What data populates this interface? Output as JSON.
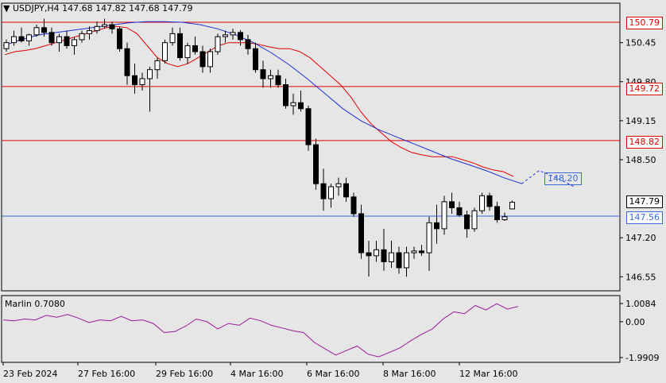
{
  "header": {
    "symbol": "USDJPY,H4",
    "ohlc": "147.68 147.82 147.68 147.79"
  },
  "indicator": {
    "label": "Marlin 0.7080",
    "y_ticks": [
      "1.0084",
      "0.00",
      "-1.9909"
    ],
    "y_values": [
      1.0084,
      0.0,
      -1.9909
    ],
    "series": [
      0.1,
      0.05,
      0.15,
      0.1,
      0.35,
      0.25,
      0.4,
      0.2,
      -0.05,
      0.1,
      0.05,
      0.3,
      0.05,
      0.1,
      -0.1,
      -0.6,
      -0.55,
      -0.25,
      0.15,
      0.0,
      -0.4,
      -0.1,
      -0.2,
      0.2,
      0.05,
      -0.2,
      -0.35,
      -0.5,
      -0.6,
      -1.15,
      -1.5,
      -1.85,
      -1.6,
      -1.35,
      -1.8,
      -1.95,
      -1.7,
      -1.45,
      -1.05,
      -0.7,
      -0.4,
      0.15,
      0.55,
      0.45,
      0.9,
      0.65,
      1.0,
      0.7,
      0.85
    ]
  },
  "price_levels": {
    "red_lines": [
      "150.79",
      "149.72",
      "148.82"
    ],
    "blue_line": "147.56",
    "current": "147.79",
    "ma_forecast": "148.20"
  },
  "chart_data": {
    "type": "candlestick",
    "symbol": "USDJPY",
    "timeframe": "H4",
    "ylim": [
      146.35,
      151.0
    ],
    "y_ticks": [
      "150.45",
      "149.80",
      "149.15",
      "148.50",
      "147.20",
      "146.55"
    ],
    "x_ticks": [
      "23 Feb 2024",
      "27 Feb 16:00",
      "29 Feb 16:00",
      "4 Mar 16:00",
      "6 Mar 16:00",
      "8 Mar 16:00",
      "12 Mar 16:00"
    ],
    "horizontal_lines": [
      150.79,
      149.72,
      148.82,
      147.56
    ],
    "candles": [
      [
        150.35,
        150.5,
        150.3,
        150.45
      ],
      [
        150.45,
        150.65,
        150.4,
        150.55
      ],
      [
        150.55,
        150.7,
        150.45,
        150.48
      ],
      [
        150.48,
        150.6,
        150.4,
        150.58
      ],
      [
        150.58,
        150.75,
        150.55,
        150.7
      ],
      [
        150.7,
        150.85,
        150.55,
        150.62
      ],
      [
        150.62,
        150.7,
        150.4,
        150.45
      ],
      [
        150.45,
        150.6,
        150.3,
        150.55
      ],
      [
        150.55,
        150.65,
        150.35,
        150.4
      ],
      [
        150.4,
        150.55,
        150.25,
        150.5
      ],
      [
        150.5,
        150.65,
        150.45,
        150.6
      ],
      [
        150.6,
        150.72,
        150.5,
        150.65
      ],
      [
        150.65,
        150.8,
        150.6,
        150.72
      ],
      [
        150.72,
        150.85,
        150.68,
        150.75
      ],
      [
        150.75,
        150.8,
        150.6,
        150.68
      ],
      [
        150.68,
        150.72,
        150.3,
        150.35
      ],
      [
        150.35,
        150.45,
        149.75,
        149.9
      ],
      [
        149.9,
        150.1,
        149.6,
        149.75
      ],
      [
        149.75,
        149.95,
        149.65,
        149.85
      ],
      [
        149.85,
        150.05,
        149.3,
        150.0
      ],
      [
        150.0,
        150.2,
        149.85,
        150.15
      ],
      [
        150.15,
        150.5,
        150.1,
        150.45
      ],
      [
        150.45,
        150.7,
        150.4,
        150.6
      ],
      [
        150.6,
        150.7,
        150.15,
        150.2
      ],
      [
        150.2,
        150.45,
        150.1,
        150.4
      ],
      [
        150.4,
        150.55,
        150.25,
        150.3
      ],
      [
        150.3,
        150.4,
        149.95,
        150.05
      ],
      [
        150.05,
        150.35,
        149.95,
        150.3
      ],
      [
        150.3,
        150.6,
        150.25,
        150.55
      ],
      [
        150.55,
        150.65,
        150.45,
        150.58
      ],
      [
        150.58,
        150.68,
        150.5,
        150.62
      ],
      [
        150.62,
        150.66,
        150.4,
        150.5
      ],
      [
        150.5,
        150.58,
        150.25,
        150.35
      ],
      [
        150.35,
        150.45,
        149.95,
        150.0
      ],
      [
        150.0,
        150.15,
        149.7,
        149.85
      ],
      [
        149.85,
        150.0,
        149.7,
        149.9
      ],
      [
        149.9,
        150.0,
        149.7,
        149.75
      ],
      [
        149.75,
        149.85,
        149.35,
        149.4
      ],
      [
        149.4,
        149.6,
        149.25,
        149.45
      ],
      [
        149.45,
        149.65,
        149.3,
        149.35
      ],
      [
        149.35,
        149.4,
        148.65,
        148.75
      ],
      [
        148.75,
        148.85,
        148.0,
        148.1
      ],
      [
        148.1,
        148.35,
        147.65,
        147.85
      ],
      [
        147.85,
        148.1,
        147.7,
        148.05
      ],
      [
        148.05,
        148.2,
        147.9,
        148.1
      ],
      [
        148.1,
        148.2,
        147.8,
        147.88
      ],
      [
        147.88,
        147.95,
        147.55,
        147.6
      ],
      [
        147.6,
        147.75,
        146.85,
        146.95
      ],
      [
        146.95,
        147.15,
        146.55,
        146.9
      ],
      [
        146.9,
        147.15,
        146.8,
        147.0
      ],
      [
        147.0,
        147.35,
        146.65,
        146.8
      ],
      [
        146.8,
        147.15,
        146.7,
        146.95
      ],
      [
        146.95,
        147.05,
        146.6,
        146.7
      ],
      [
        146.7,
        147.05,
        146.55,
        146.95
      ],
      [
        146.95,
        147.05,
        146.85,
        146.98
      ],
      [
        146.98,
        147.08,
        146.9,
        146.95
      ],
      [
        146.95,
        147.55,
        146.65,
        147.45
      ],
      [
        147.45,
        147.75,
        147.1,
        147.35
      ],
      [
        147.35,
        147.9,
        147.25,
        147.8
      ],
      [
        147.8,
        147.95,
        147.6,
        147.7
      ],
      [
        147.7,
        147.8,
        147.55,
        147.58
      ],
      [
        147.58,
        147.65,
        147.2,
        147.35
      ],
      [
        147.35,
        147.7,
        147.3,
        147.65
      ],
      [
        147.65,
        147.95,
        147.6,
        147.9
      ],
      [
        147.9,
        147.95,
        147.65,
        147.72
      ],
      [
        147.72,
        147.8,
        147.45,
        147.5
      ],
      [
        147.5,
        147.62,
        147.48,
        147.55
      ],
      [
        147.68,
        147.82,
        147.68,
        147.79
      ]
    ],
    "ma_red": [
      150.25,
      150.3,
      150.32,
      150.35,
      150.4,
      150.45,
      150.5,
      150.55,
      150.6,
      150.65,
      150.7,
      150.72,
      150.7,
      150.6,
      150.4,
      150.2,
      150.1,
      150.05,
      150.1,
      150.2,
      150.3,
      150.4,
      150.45,
      150.45,
      150.45,
      150.42,
      150.38,
      150.35,
      150.35,
      150.3,
      150.2,
      150.05,
      149.9,
      149.75,
      149.55,
      149.3,
      149.1,
      148.95,
      148.8,
      148.7,
      148.62,
      148.58,
      148.55,
      148.55,
      148.55,
      148.5,
      148.45,
      148.38,
      148.33,
      148.3,
      148.22
    ],
    "ma_blue": [
      150.4,
      150.5,
      150.58,
      150.62,
      150.66,
      150.7,
      150.74,
      150.78,
      150.8,
      150.8,
      150.79,
      150.75,
      150.68,
      150.58,
      150.45,
      150.28,
      150.08,
      149.85,
      149.6,
      149.35,
      149.15,
      149.0,
      148.88,
      148.76,
      148.64,
      148.52,
      148.42,
      148.32,
      148.2,
      148.1
    ],
    "ma_blue_forecast": [
      148.32,
      148.2,
      148.05
    ]
  }
}
